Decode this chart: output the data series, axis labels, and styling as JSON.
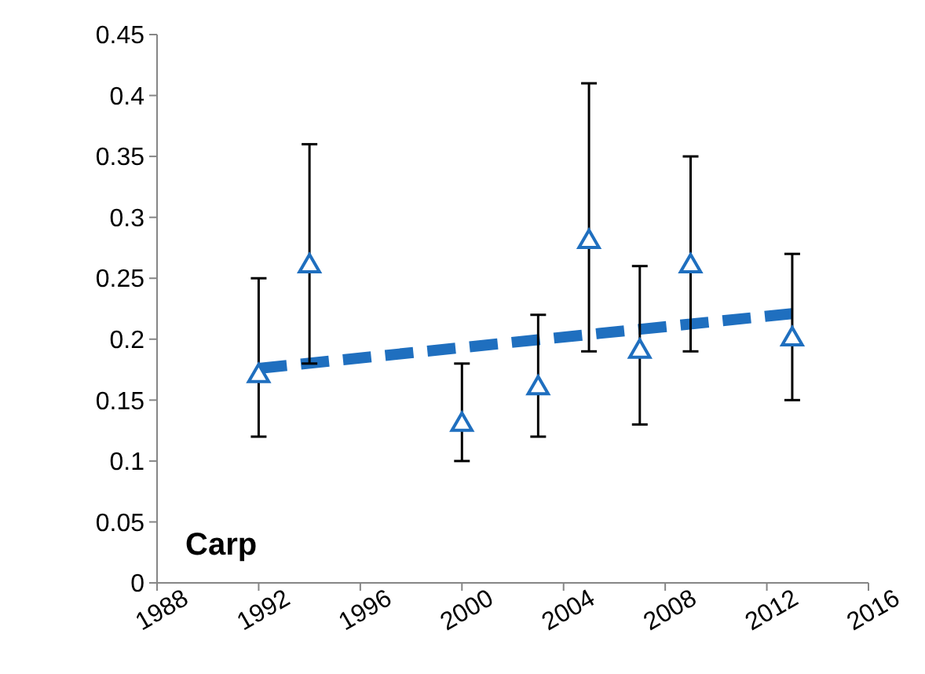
{
  "chart_data": {
    "type": "scatter",
    "annotations": [
      "Carp"
    ],
    "xlim": [
      1988,
      2016
    ],
    "xticks": [
      1988,
      1992,
      1996,
      2000,
      2004,
      2008,
      2012,
      2016
    ],
    "ylim": [
      0,
      0.45
    ],
    "yticks": [
      {
        "value": 0,
        "label": "0"
      },
      {
        "value": 0.05,
        "label": "0.05"
      },
      {
        "value": 0.1,
        "label": "0.1"
      },
      {
        "value": 0.15,
        "label": "0.15"
      },
      {
        "value": 0.2,
        "label": "0.2"
      },
      {
        "value": 0.25,
        "label": "0.25"
      },
      {
        "value": 0.3,
        "label": "0.3"
      },
      {
        "value": 0.35,
        "label": "0.35"
      },
      {
        "value": 0.4,
        "label": "0.4"
      },
      {
        "value": 0.45,
        "label": "0.45"
      }
    ],
    "grid": false,
    "series": [
      {
        "color": "#1f6fbf",
        "marker": "triangle",
        "x": [
          1992,
          1994,
          2000,
          2003,
          2005,
          2007,
          2009,
          2013
        ],
        "values": [
          0.17,
          0.26,
          0.13,
          0.16,
          0.28,
          0.19,
          0.26,
          0.2
        ],
        "errors": [
          [
            0.12,
            0.25
          ],
          [
            0.18,
            0.36
          ],
          [
            0.1,
            0.18
          ],
          [
            0.12,
            0.22
          ],
          [
            0.19,
            0.41
          ],
          [
            0.13,
            0.26
          ],
          [
            0.19,
            0.35
          ],
          [
            0.15,
            0.27
          ]
        ]
      },
      {
        "type": "line",
        "color": "#1f6fbf",
        "line_style": "dashed",
        "marker": "none",
        "x": [
          1992,
          2013
        ],
        "values": [
          0.176,
          0.221
        ]
      }
    ]
  }
}
